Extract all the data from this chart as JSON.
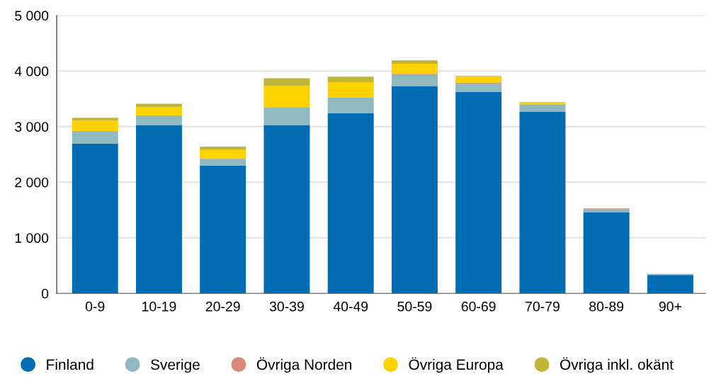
{
  "chart_data": {
    "type": "bar",
    "stacked": true,
    "categories": [
      "0-9",
      "10-19",
      "20-29",
      "30-39",
      "40-49",
      "50-59",
      "60-69",
      "70-79",
      "80-89",
      "90+"
    ],
    "series": [
      {
        "name": "Finland",
        "color": "#006cb4",
        "values": [
          2690,
          3030,
          2300,
          3030,
          3240,
          3730,
          3620,
          3270,
          1460,
          330
        ]
      },
      {
        "name": "Sverige",
        "color": "#8fb8bf",
        "values": [
          230,
          170,
          120,
          320,
          280,
          210,
          150,
          130,
          50,
          20
        ]
      },
      {
        "name": "Övriga Norden",
        "color": "#d9897a",
        "values": [
          null,
          null,
          10,
          null,
          null,
          10,
          20,
          null,
          20,
          0
        ]
      },
      {
        "name": "Övriga Europa",
        "color": "#ffd200",
        "values": [
          190,
          150,
          150,
          380,
          280,
          180,
          110,
          30,
          0,
          0
        ]
      },
      {
        "name": "Övriga inkl. okänt",
        "color": "#c2b53b",
        "values": [
          50,
          60,
          60,
          140,
          100,
          60,
          10,
          10,
          0,
          0
        ]
      }
    ],
    "ylim": [
      0,
      5000
    ],
    "yticks": [
      {
        "value": 0,
        "label": "0"
      },
      {
        "value": 1000,
        "label": "1 000"
      },
      {
        "value": 2000,
        "label": "2 000"
      },
      {
        "value": 3000,
        "label": "3 000"
      },
      {
        "value": 4000,
        "label": "4 000"
      },
      {
        "value": 5000,
        "label": "5 000"
      }
    ],
    "grid": "y",
    "legend": "bottom"
  }
}
